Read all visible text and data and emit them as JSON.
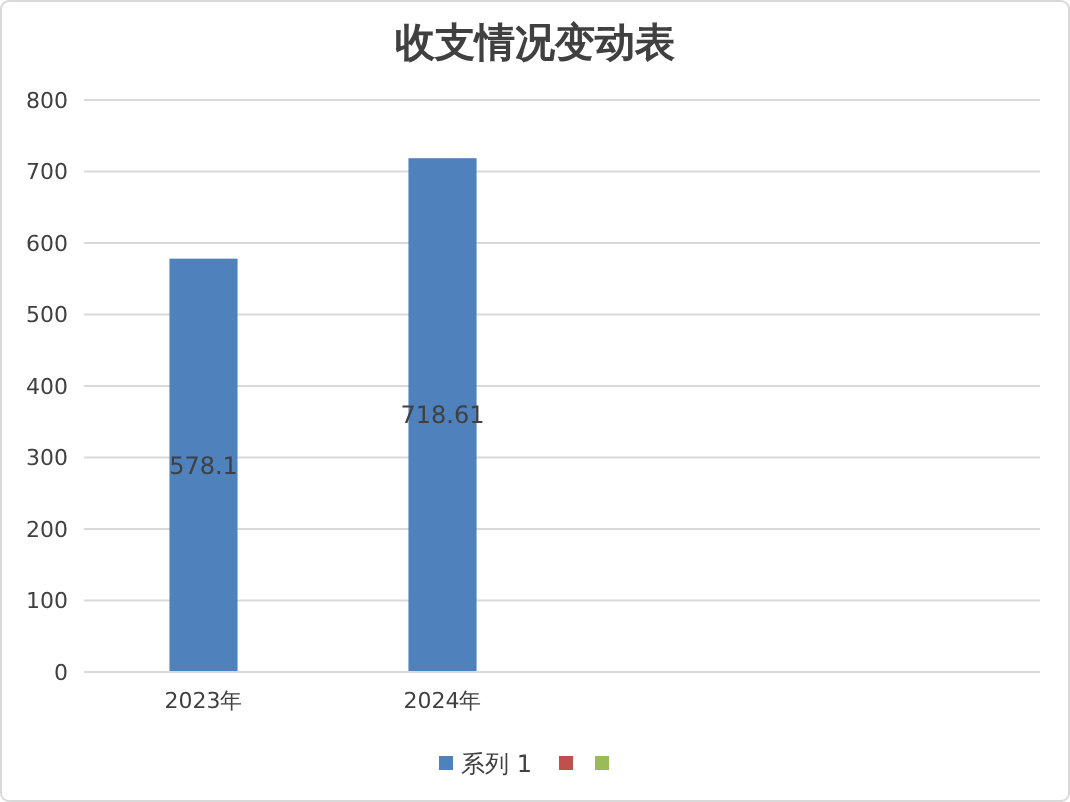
{
  "chart_data": {
    "type": "bar",
    "title": "收支情况变动表",
    "categories": [
      "2023年",
      "2024年",
      null,
      null
    ],
    "series": [
      {
        "name": "系列 1",
        "color": "#4f81bd",
        "values": [
          578.1,
          718.61,
          null,
          null
        ]
      },
      {
        "color": "#c0504d",
        "values": [
          null,
          null,
          null,
          null
        ]
      },
      {
        "color": "#9bbb59",
        "values": [
          null,
          null,
          null,
          null
        ]
      }
    ],
    "ylim": [
      0,
      800
    ],
    "yticks": [
      0,
      100,
      200,
      300,
      400,
      500,
      600,
      700,
      800
    ],
    "grid": "y",
    "legend": "bottom",
    "data_labels": true
  }
}
